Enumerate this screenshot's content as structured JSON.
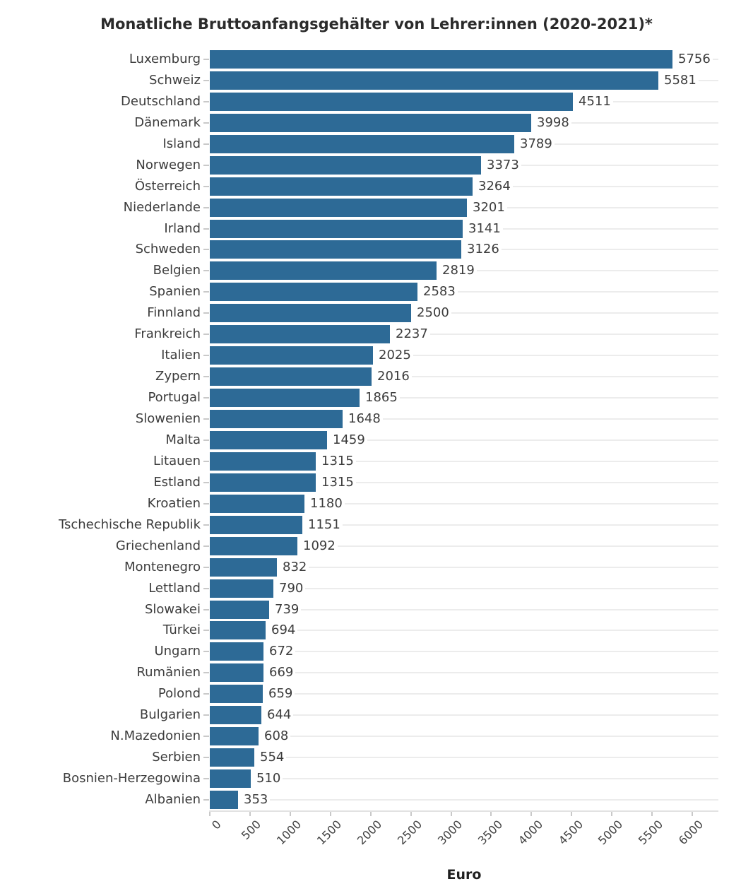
{
  "chart_data": {
    "type": "bar",
    "orientation": "horizontal",
    "title": "Monatliche Bruttoanfangsgehälter von Lehrer:innen (2020-2021)*",
    "xlabel": "Euro",
    "categories": [
      "Luxemburg",
      "Schweiz",
      "Deutschland",
      "Dänemark",
      "Island",
      "Norwegen",
      "Österreich",
      "Niederlande",
      "Irland",
      "Schweden",
      "Belgien",
      "Spanien",
      "Finnland",
      "Frankreich",
      "Italien",
      "Zypern",
      "Portugal",
      "Slowenien",
      "Malta",
      "Litauen",
      "Estland",
      "Kroatien",
      "Tschechische Republik",
      "Griechenland",
      "Montenegro",
      "Lettland",
      "Slowakei",
      "Türkei",
      "Ungarn",
      "Rumänien",
      "Polond",
      "Bulgarien",
      "N.Mazedonien",
      "Serbien",
      "Bosnien-Herzegowina",
      "Albanien"
    ],
    "values": [
      5756,
      5581,
      4511,
      3998,
      3789,
      3373,
      3264,
      3201,
      3141,
      3126,
      2819,
      2583,
      2500,
      2237,
      2025,
      2016,
      1865,
      1648,
      1459,
      1315,
      1315,
      1180,
      1151,
      1092,
      832,
      790,
      739,
      694,
      672,
      669,
      659,
      644,
      608,
      554,
      510,
      353
    ],
    "x_ticks": [
      0,
      500,
      1000,
      1500,
      2000,
      2500,
      3000,
      3500,
      4000,
      4500,
      5000,
      5500,
      6000
    ],
    "xlim": [
      0,
      6330
    ],
    "grid": "horizontal-category-gridlines",
    "legend": "none",
    "value_labels": true
  },
  "style": {
    "bar_color": "#2d6a96",
    "grid_color": "#ececec",
    "axis_color": "#e2e2e2",
    "tick_color": "#c9c9c9",
    "label_color": "#3c3c3c",
    "title_color": "#2b2b2b",
    "background": "#ffffff"
  }
}
